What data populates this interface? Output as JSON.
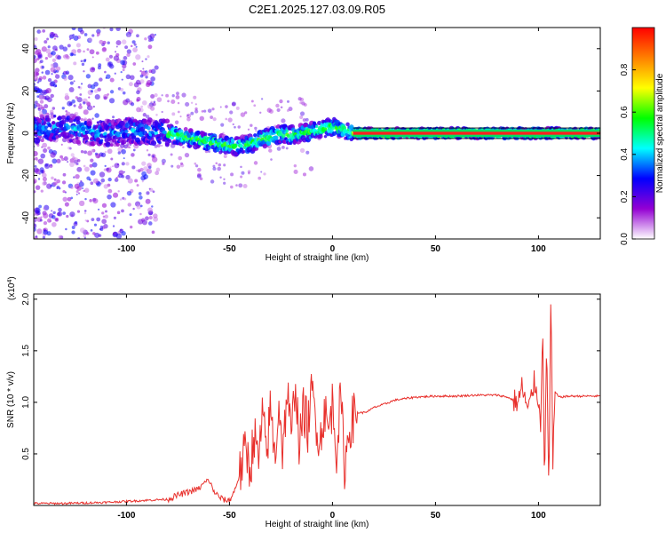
{
  "title": "C2E1.2025.127.03.09.R05",
  "chart_data": [
    {
      "type": "heatmap",
      "xlabel": "Height of straight line (km)",
      "ylabel": "Frequency (Hz)",
      "xlim": [
        -145,
        130
      ],
      "ylim": [
        -50,
        50
      ],
      "xticks": [
        -100,
        -50,
        0,
        50,
        100
      ],
      "yticks": [
        -40,
        -20,
        0,
        20,
        40
      ],
      "colorbar": {
        "label": "Normalized spectral amplitude",
        "range": [
          0,
          1
        ],
        "ticks": [
          "0.0",
          "0.2",
          "0.4",
          "0.6",
          "0.8"
        ],
        "tick_values": [
          0,
          0.2,
          0.4,
          0.6,
          0.8
        ],
        "colormap": [
          "#ffffff",
          "#9400d3",
          "#0000ff",
          "#00ffff",
          "#00ff00",
          "#ffff00",
          "#ff8000",
          "#ff0000"
        ]
      },
      "ridge": {
        "x": [
          -145,
          -130,
          -120,
          -110,
          -100,
          -90,
          -80,
          -70,
          -60,
          -55,
          -50,
          -45,
          -40,
          -35,
          -30,
          -25,
          -20,
          -15,
          -10,
          -5,
          0,
          5,
          10,
          20,
          40,
          60,
          80,
          100,
          105,
          110,
          130
        ],
        "y": [
          2,
          3,
          1,
          0,
          1,
          1,
          0,
          -2,
          -4,
          -5,
          -6,
          -6,
          -5,
          -3,
          -2,
          0,
          -1,
          0,
          1,
          2,
          3,
          2,
          0,
          0,
          0,
          0,
          0,
          0,
          0,
          0,
          0
        ]
      }
    },
    {
      "type": "line",
      "xlabel": "Height of straight line (km)",
      "ylabel": "SNR (10 * v/v)",
      "scale_label_base": "(x10",
      "scale_label_exp": "4",
      "scale_label_close": ")",
      "xlim": [
        -145,
        130
      ],
      "ylim": [
        0,
        2.05
      ],
      "xticks": [
        -100,
        -50,
        0,
        50,
        100
      ],
      "yticks": [
        0.5,
        1.0,
        1.5,
        2.0
      ],
      "ytick_labels": [
        "0.5",
        "1.0",
        "1.5",
        "2.0"
      ],
      "color": "#e8302c",
      "series": [
        {
          "x": [
            -145,
            -130,
            -110,
            -100,
            -90,
            -80,
            -75,
            -70,
            -65,
            -62,
            -60,
            -58,
            -55,
            -52,
            -50,
            -48,
            -45,
            -42,
            -40,
            -38,
            -36,
            -34,
            -32,
            -30,
            -28,
            -26,
            -24,
            -22,
            -20,
            -18,
            -16,
            -14,
            -12,
            -10,
            -8,
            -6,
            -4,
            -2,
            0,
            2,
            4,
            6,
            8,
            10,
            12,
            15,
            18,
            20,
            25,
            30,
            40,
            50,
            60,
            70,
            80,
            85,
            90,
            92,
            95,
            98,
            100,
            101,
            102,
            103,
            104,
            105,
            106,
            107,
            108,
            110,
            115,
            120,
            125,
            130
          ],
          "y": [
            0.02,
            0.02,
            0.03,
            0.04,
            0.05,
            0.06,
            0.1,
            0.13,
            0.16,
            0.22,
            0.25,
            0.15,
            0.08,
            0.05,
            0.05,
            0.12,
            0.3,
            0.55,
            0.35,
            0.7,
            0.4,
            0.85,
            0.5,
            0.95,
            0.45,
            1.0,
            0.5,
            1.15,
            0.6,
            1.25,
            0.55,
            0.95,
            0.75,
            1.1,
            0.85,
            0.6,
            0.95,
            0.7,
            1.0,
            0.55,
            1.05,
            0.35,
            0.75,
            0.85,
            0.9,
            0.9,
            0.92,
            0.95,
            0.98,
            1.02,
            1.05,
            1.06,
            1.06,
            1.07,
            1.07,
            1.05,
            1.0,
            1.15,
            0.9,
            1.2,
            1.05,
            0.7,
            1.85,
            0.15,
            1.6,
            0.1,
            2.05,
            0.4,
            1.1,
            1.05,
            1.06,
            1.06,
            1.06,
            1.06
          ]
        }
      ]
    }
  ]
}
